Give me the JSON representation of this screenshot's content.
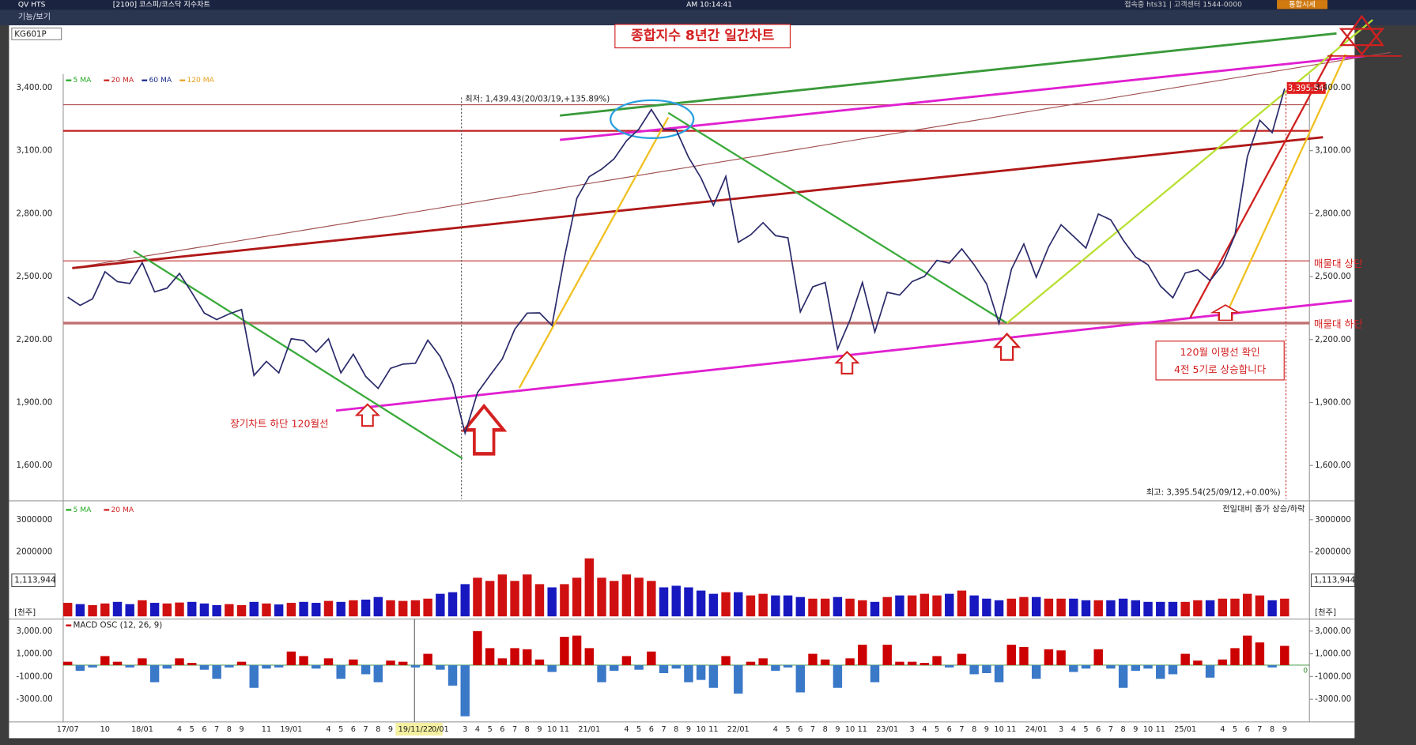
{
  "header": {
    "app": "QV HTS",
    "window": "[2100] 코스피/코스닥 지수차트",
    "time": "AM 10:14:41",
    "status": "접속중 hts31 | 고객센터 1544-0000",
    "button": "통합시세",
    "menu": "기능/보기",
    "code": "KG601P"
  },
  "chart_data": [
    {
      "type": "line",
      "title": "종합지수 8년간 일간차트",
      "categories": [
        "17/07",
        null,
        null,
        "10",
        null,
        null,
        "18/01",
        null,
        null,
        "4",
        "5",
        "6",
        "7",
        "8",
        "9",
        null,
        "11",
        null,
        "19/01",
        null,
        null,
        "4",
        "5",
        "6",
        "7",
        "8",
        "9",
        null,
        "19/11/22",
        null,
        "0/01",
        null,
        "3",
        "4",
        "5",
        "6",
        "7",
        "8",
        "9",
        "10",
        "11",
        null,
        "21/01",
        null,
        null,
        "4",
        "5",
        "6",
        "7",
        "8",
        "9",
        "10",
        "11",
        null,
        "22/01",
        null,
        null,
        "4",
        "5",
        "6",
        "7",
        "8",
        "9",
        "10",
        "11",
        null,
        "23/01",
        null,
        "3",
        "4",
        "5",
        "6",
        "7",
        "8",
        "9",
        "10",
        "11",
        null,
        "24/01",
        null,
        "3",
        "4",
        "5",
        "6",
        "7",
        "8",
        "9",
        "10",
        "11",
        null,
        "25/01",
        null,
        null,
        "4",
        "5",
        "6",
        "7",
        "8",
        "9"
      ],
      "values": [
        2402,
        2363,
        2394,
        2523,
        2476,
        2467,
        2566,
        2427,
        2445,
        2515,
        2423,
        2326,
        2295,
        2322,
        2343,
        2029,
        2096,
        2041,
        2204,
        2195,
        2140,
        2203,
        2041,
        2130,
        2024,
        1967,
        2063,
        2083,
        2087,
        2197,
        2119,
        1987,
        1754,
        1947,
        2029,
        2108,
        2249,
        2326,
        2327,
        2267,
        2591,
        2873,
        2976,
        3012,
        3061,
        3147,
        3203,
        3296,
        3202,
        3199,
        3068,
        2970,
        2839,
        2977,
        2663,
        2699,
        2757,
        2695,
        2685,
        2332,
        2451,
        2472,
        2155,
        2293,
        2472,
        2236,
        2425,
        2412,
        2476,
        2501,
        2577,
        2564,
        2632,
        2556,
        2465,
        2277,
        2535,
        2655,
        2497,
        2642,
        2747,
        2692,
        2636,
        2798,
        2770,
        2674,
        2593,
        2556,
        2455,
        2399,
        2517,
        2532,
        2481,
        2556,
        2697,
        3071,
        3245,
        3186,
        3395.54
      ],
      "color": "#2b2b6b",
      "ylim": [
        1440,
        3465
      ],
      "yticks": [
        {
          "value": 3400,
          "label": "3,400.00"
        },
        {
          "value": 3100,
          "label": "3,100.00"
        },
        {
          "value": 2800,
          "label": "2,800.00"
        },
        {
          "value": 2500,
          "label": "2,500.00"
        },
        {
          "value": 2200,
          "label": "2,200.00"
        },
        {
          "value": 1900,
          "label": "1,900.00"
        },
        {
          "value": 1600,
          "label": "1,600.00"
        }
      ],
      "legend": [
        {
          "name": "5 MA",
          "color": "#22aa22"
        },
        {
          "name": "20 MA",
          "color": "#cc2222"
        },
        {
          "name": "60 MA",
          "color": "#1a2a8a"
        },
        {
          "name": "120 MA",
          "color": "#e8a020"
        }
      ],
      "low_label": "최저: 1,439.43(20/03/19,+135.89%)",
      "high_label": "최고: 3,395.54(25/09/12,+0.00%)",
      "last_label": "3,395.54",
      "annotations": [
        "매물대 상단",
        "매물대 하단",
        "장기차트 하단 120월선",
        "120월 이평선 확인",
        "4전 5기로 상승합니다"
      ]
    },
    {
      "type": "bar",
      "values": [
        420000,
        380000,
        350000,
        400000,
        450000,
        380000,
        500000,
        420000,
        400000,
        430000,
        450000,
        400000,
        350000,
        380000,
        350000,
        450000,
        400000,
        370000,
        420000,
        450000,
        420000,
        480000,
        450000,
        500000,
        520000,
        600000,
        500000,
        480000,
        500000,
        550000,
        700000,
        750000,
        1000000,
        1200000,
        1100000,
        1300000,
        1100000,
        1300000,
        1000000,
        900000,
        1000000,
        1200000,
        1800000,
        1200000,
        1100000,
        1300000,
        1200000,
        1100000,
        900000,
        950000,
        900000,
        800000,
        700000,
        750000,
        750000,
        650000,
        700000,
        650000,
        650000,
        600000,
        550000,
        550000,
        600000,
        550000,
        500000,
        450000,
        600000,
        650000,
        650000,
        700000,
        650000,
        700000,
        800000,
        650000,
        550000,
        500000,
        550000,
        600000,
        600000,
        550000,
        550000,
        550000,
        500000,
        500000,
        500000,
        550000,
        500000,
        450000,
        450000,
        450000,
        450000,
        500000,
        500000,
        550000,
        550000,
        700000,
        650000,
        500000,
        550000
      ],
      "up_color": "#d01010",
      "down_color": "#1818c0",
      "ylim": [
        0,
        3500000
      ],
      "yticks": [
        3000000,
        2000000
      ],
      "legend": [
        {
          "name": "5 MA",
          "color": "#22aa22"
        },
        {
          "name": "20 MA",
          "color": "#cc2222"
        }
      ],
      "note": "전일대비 종가 상승/하락",
      "current_label": "1,113,944",
      "unit": "[천주]"
    },
    {
      "type": "bar",
      "title": "MACD OSC (12, 26, 9)",
      "values": [
        300,
        -500,
        -200,
        800,
        300,
        -200,
        600,
        -1500,
        -300,
        600,
        200,
        -400,
        -1200,
        -200,
        300,
        -2000,
        -300,
        -200,
        1200,
        800,
        -300,
        600,
        -1200,
        500,
        -800,
        -1500,
        400,
        300,
        -200,
        1000,
        -400,
        -1800,
        -4500,
        3000,
        1500,
        600,
        1500,
        1400,
        500,
        -600,
        2500,
        2600,
        1500,
        -1500,
        -500,
        800,
        -400,
        1200,
        -700,
        -300,
        -1500,
        -1300,
        -2000,
        800,
        -2500,
        300,
        600,
        -500,
        -200,
        -2400,
        1000,
        500,
        -2000,
        600,
        1800,
        -1500,
        1800,
        300,
        300,
        200,
        800,
        -200,
        1000,
        -800,
        -700,
        -1500,
        1800,
        1600,
        -1200,
        1400,
        1300,
        -600,
        -300,
        1400,
        -300,
        -2000,
        -500,
        -300,
        -1200,
        -800,
        1000,
        400,
        -1100,
        500,
        1500,
        2600,
        2000,
        -200,
        1700
      ],
      "pos_color": "#cc0000",
      "neg_color": "#3a78c8",
      "ylim": [
        -5000,
        3900
      ],
      "yticks": [
        {
          "value": 3000,
          "label": "3,000.00"
        },
        {
          "value": 1000,
          "label": "1,000.00"
        },
        {
          "value": -1000,
          "label": "-1000.00"
        },
        {
          "value": -3000,
          "label": "-3000.00"
        }
      ],
      "zero_tick": 0
    }
  ]
}
